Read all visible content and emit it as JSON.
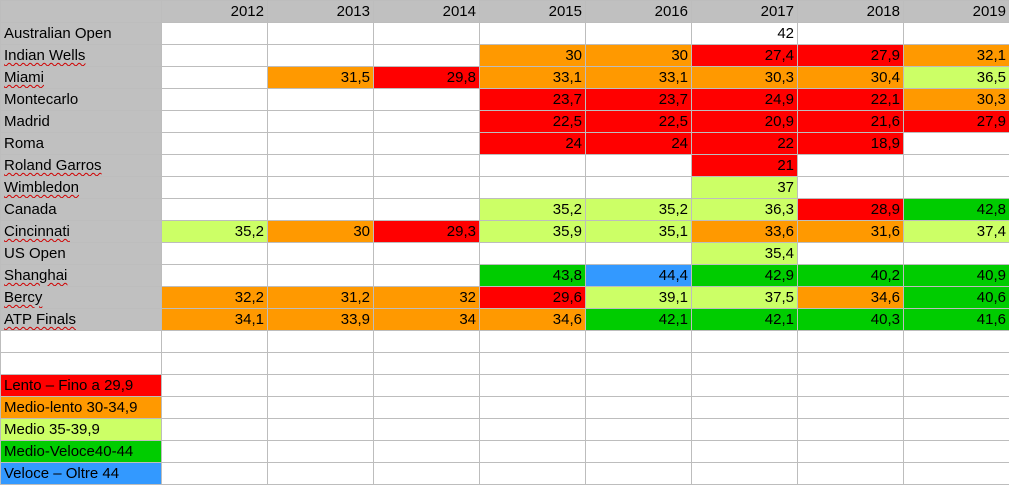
{
  "colors": {
    "lento": "#ff0000",
    "medio_lento": "#ff9900",
    "medio": "#ccff66",
    "medio_veloce": "#00cc00",
    "veloce": "#3399ff",
    "header_gray": "#c0c0c0"
  },
  "years": [
    "2012",
    "2013",
    "2014",
    "2015",
    "2016",
    "2017",
    "2018",
    "2019"
  ],
  "rows": [
    {
      "name": "Australian Open",
      "spell": false,
      "values": [
        "",
        "",
        "",
        "",
        "",
        "42",
        "",
        ""
      ],
      "cats": [
        "",
        "",
        "",
        "",
        "",
        "",
        "",
        ""
      ]
    },
    {
      "name": "Indian Wells",
      "spell": true,
      "values": [
        "",
        "",
        "",
        "30",
        "30",
        "27,4",
        "27,9",
        "32,1"
      ],
      "cats": [
        "",
        "",
        "",
        "medio_lento",
        "medio_lento",
        "lento",
        "lento",
        "medio_lento"
      ]
    },
    {
      "name": "Miami",
      "spell": true,
      "values": [
        "",
        "31,5",
        "29,8",
        "33,1",
        "33,1",
        "30,3",
        "30,4",
        "36,5"
      ],
      "cats": [
        "",
        "medio_lento",
        "lento",
        "medio_lento",
        "medio_lento",
        "medio_lento",
        "medio_lento",
        "medio"
      ]
    },
    {
      "name": "Montecarlo",
      "spell": false,
      "values": [
        "",
        "",
        "",
        "23,7",
        "23,7",
        "24,9",
        "22,1",
        "30,3"
      ],
      "cats": [
        "",
        "",
        "",
        "lento",
        "lento",
        "lento",
        "lento",
        "medio_lento"
      ]
    },
    {
      "name": "Madrid",
      "spell": false,
      "values": [
        "",
        "",
        "",
        "22,5",
        "22,5",
        "20,9",
        "21,6",
        "27,9"
      ],
      "cats": [
        "",
        "",
        "",
        "lento",
        "lento",
        "lento",
        "lento",
        "lento"
      ]
    },
    {
      "name": "Roma",
      "spell": false,
      "values": [
        "",
        "",
        "",
        "24",
        "24",
        "22",
        "18,9",
        ""
      ],
      "cats": [
        "",
        "",
        "",
        "lento",
        "lento",
        "lento",
        "lento",
        ""
      ]
    },
    {
      "name": "Roland Garros",
      "spell": true,
      "values": [
        "",
        "",
        "",
        "",
        "",
        "21",
        "",
        ""
      ],
      "cats": [
        "",
        "",
        "",
        "",
        "",
        "lento",
        "",
        ""
      ]
    },
    {
      "name": "Wimbledon",
      "spell": true,
      "values": [
        "",
        "",
        "",
        "",
        "",
        "37",
        "",
        ""
      ],
      "cats": [
        "",
        "",
        "",
        "",
        "",
        "medio",
        "",
        ""
      ]
    },
    {
      "name": "Canada",
      "spell": false,
      "values": [
        "",
        "",
        "",
        "35,2",
        "35,2",
        "36,3",
        "28,9",
        "42,8"
      ],
      "cats": [
        "",
        "",
        "",
        "medio",
        "medio",
        "medio",
        "lento",
        "medio_veloce"
      ]
    },
    {
      "name": "Cincinnati",
      "spell": true,
      "values": [
        "35,2",
        "30",
        "29,3",
        "35,9",
        "35,1",
        "33,6",
        "31,6",
        "37,4"
      ],
      "cats": [
        "medio",
        "medio_lento",
        "lento",
        "medio",
        "medio",
        "medio_lento",
        "medio_lento",
        "medio"
      ]
    },
    {
      "name": "US Open",
      "spell": false,
      "values": [
        "",
        "",
        "",
        "",
        "",
        "35,4",
        "",
        ""
      ],
      "cats": [
        "",
        "",
        "",
        "",
        "",
        "medio",
        "",
        ""
      ]
    },
    {
      "name": "Shanghai",
      "spell": true,
      "values": [
        "",
        "",
        "",
        "43,8",
        "44,4",
        "42,9",
        "40,2",
        "40,9"
      ],
      "cats": [
        "",
        "",
        "",
        "medio_veloce",
        "veloce",
        "medio_veloce",
        "medio_veloce",
        "medio_veloce"
      ]
    },
    {
      "name": "Bercy",
      "spell": true,
      "values": [
        "32,2",
        "31,2",
        "32",
        "29,6",
        "39,1",
        "37,5",
        "34,6",
        "40,6"
      ],
      "cats": [
        "medio_lento",
        "medio_lento",
        "medio_lento",
        "lento",
        "medio",
        "medio",
        "medio_lento",
        "medio_veloce"
      ]
    },
    {
      "name": "ATP Finals",
      "spell": true,
      "values": [
        "34,1",
        "33,9",
        "34",
        "34,6",
        "42,1",
        "42,1",
        "40,3",
        "41,6"
      ],
      "cats": [
        "medio_lento",
        "medio_lento",
        "medio_lento",
        "medio_lento",
        "medio_veloce",
        "medio_veloce",
        "medio_veloce",
        "medio_veloce"
      ]
    }
  ],
  "legend": [
    {
      "label": "Lento – Fino a 29,9",
      "cat": "lento"
    },
    {
      "label": "Medio-lento 30-34,9",
      "cat": "medio_lento"
    },
    {
      "label": "Medio 35-39,9",
      "cat": "medio"
    },
    {
      "label": "Medio-Veloce40-44",
      "cat": "medio_veloce"
    },
    {
      "label": "Veloce – Oltre 44",
      "cat": "veloce"
    }
  ]
}
